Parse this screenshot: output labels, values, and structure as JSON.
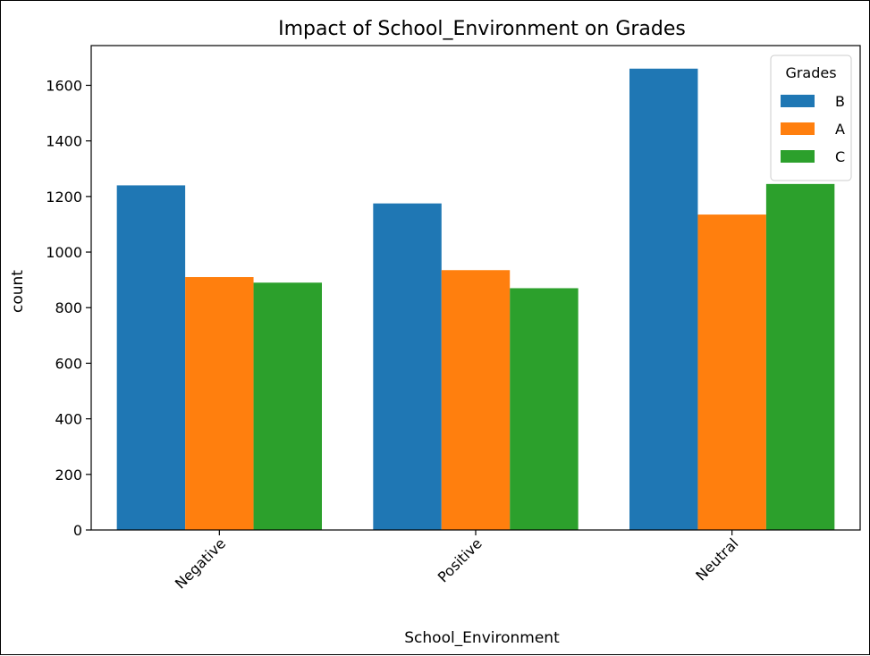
{
  "chart_data": {
    "type": "bar",
    "title": "Impact of School_Environment on Grades",
    "xlabel": "School_Environment",
    "ylabel": "count",
    "categories": [
      "Negative",
      "Positive",
      "Neutral"
    ],
    "series": [
      {
        "name": "B",
        "values": [
          1240,
          1175,
          1660
        ],
        "color": "#1f77b4"
      },
      {
        "name": "A",
        "values": [
          910,
          935,
          1135
        ],
        "color": "#ff7f0e"
      },
      {
        "name": "C",
        "values": [
          890,
          870,
          1245
        ],
        "color": "#2ca02c"
      }
    ],
    "yticks": [
      0,
      200,
      400,
      600,
      800,
      1000,
      1200,
      1400,
      1600
    ],
    "ylim": [
      0,
      1743
    ],
    "legend": {
      "title": "Grades",
      "position": "top-right"
    },
    "grid": false
  }
}
